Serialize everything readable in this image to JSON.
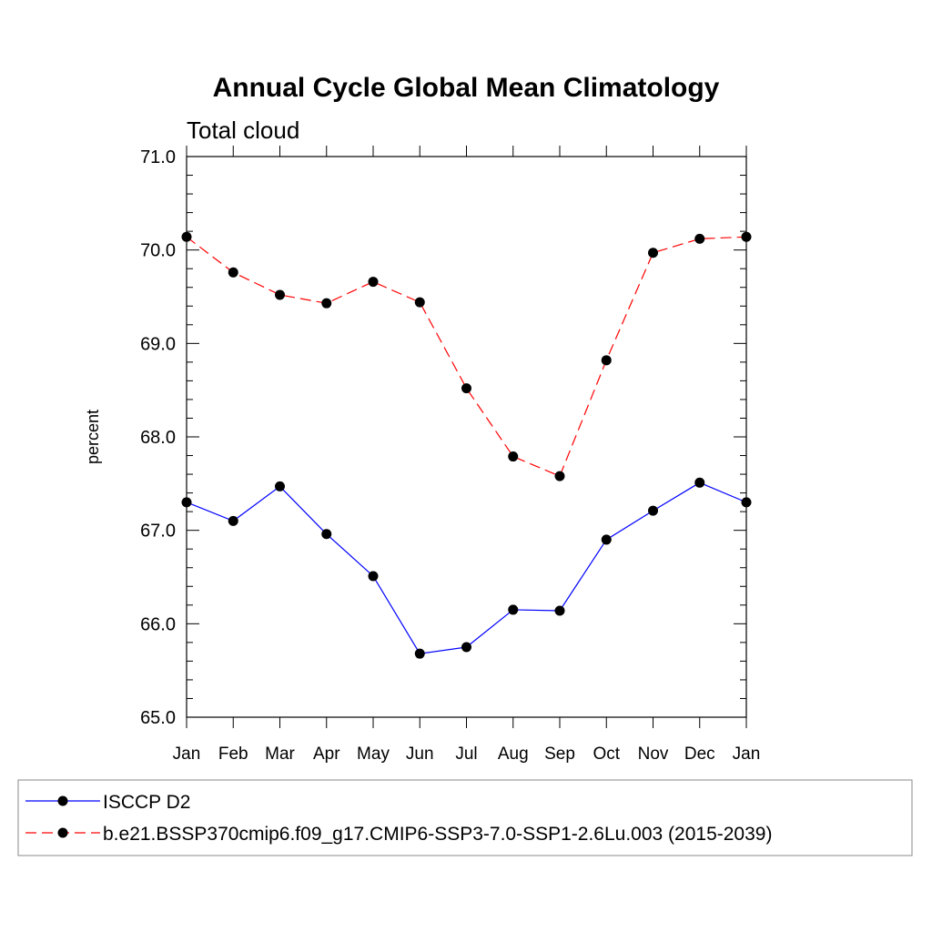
{
  "chart_data": {
    "type": "line",
    "title": "Annual Cycle Global Mean Climatology",
    "subtitle": "Total cloud",
    "ylabel": "percent",
    "xlabel": "",
    "categories": [
      "Jan",
      "Feb",
      "Mar",
      "Apr",
      "May",
      "Jun",
      "Jul",
      "Aug",
      "Sep",
      "Oct",
      "Nov",
      "Dec",
      "Jan"
    ],
    "ylim": [
      65.0,
      71.0
    ],
    "yticks": [
      "65.0",
      "66.0",
      "67.0",
      "68.0",
      "69.0",
      "70.0",
      "71.0"
    ],
    "grid": false,
    "legend_position": "bottom",
    "series": [
      {
        "name": "ISCCP D2",
        "color": "#0000ff",
        "dash": "solid",
        "marker": "filled-circle",
        "values": [
          67.3,
          67.1,
          67.47,
          66.96,
          66.51,
          65.68,
          65.75,
          66.15,
          66.14,
          66.9,
          67.21,
          67.51,
          67.3
        ]
      },
      {
        "name": "b.e21.BSSP370cmip6.f09_g17.CMIP6-SSP3-7.0-SSP1-2.6Lu.003 (2015-2039)",
        "color": "#ff0000",
        "dash": "dashed",
        "marker": "filled-circle",
        "values": [
          70.14,
          69.76,
          69.52,
          69.43,
          69.66,
          69.44,
          68.52,
          67.79,
          67.58,
          68.82,
          69.97,
          70.12,
          70.14
        ]
      }
    ]
  }
}
